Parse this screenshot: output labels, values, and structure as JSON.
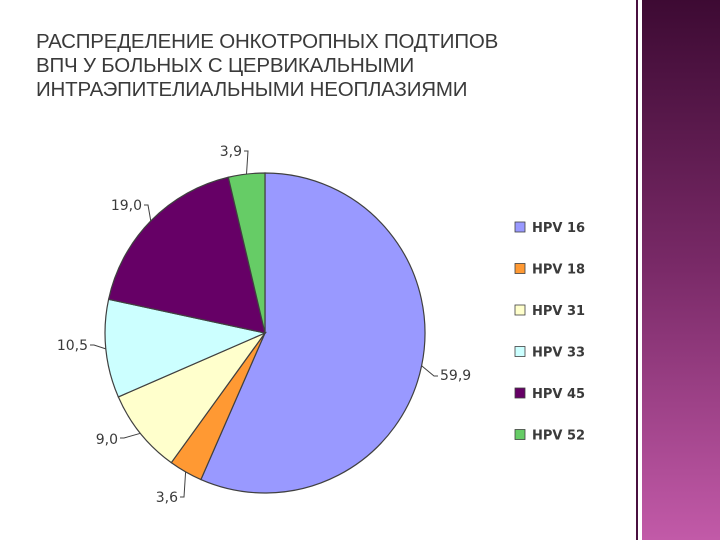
{
  "title_lines": [
    "РАСПРЕДЕЛЕНИЕ ОНКОТРОПНЫХ ПОДТИПОВ",
    "ВПЧ У БОЛЬНЫХ С  ЦЕРВИКАЛЬНЫМИ",
    "ИНТРАЭПИТЕЛИАЛЬНЫМИ НЕОПЛАЗИЯМИ"
  ],
  "chart_data": {
    "type": "pie",
    "title": "",
    "legend_position": "right",
    "start_angle": "12 o'clock, clockwise",
    "slices": [
      {
        "name": "HPV 16",
        "value": 59.9,
        "label": "59,9",
        "color": "#9999FF"
      },
      {
        "name": "HPV 18",
        "value": 3.6,
        "label": "3,6",
        "color": "#FF9933"
      },
      {
        "name": "HPV 31",
        "value": 9.0,
        "label": "9,0",
        "color": "#FFFFCC"
      },
      {
        "name": "HPV 33",
        "value": 10.5,
        "label": "10,5",
        "color": "#CCFFFF"
      },
      {
        "name": "HPV 45",
        "value": 19.0,
        "label": "19,0",
        "color": "#660066"
      },
      {
        "name": "HPV 52",
        "value": 3.9,
        "label": "3,9",
        "color": "#66CC66"
      }
    ]
  },
  "decor": {
    "sidebar_gradient": [
      "#3d0a33",
      "#7a2a68",
      "#c25aa8"
    ],
    "outline_color": "#404040"
  }
}
